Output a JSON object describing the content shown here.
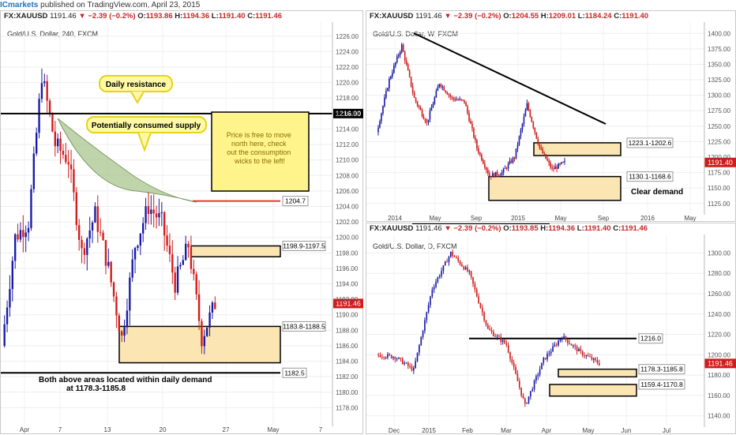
{
  "header": {
    "brand": "ICmarkets",
    "published": "published on TradingView.com, April 23, 2015"
  },
  "colors": {
    "bull": "#1a1aa6",
    "bear": "#d21b1b",
    "zone": "#fbe6b3",
    "supply": "#a9c68f",
    "note": "#fff48c",
    "resistance_line": "#e53935"
  },
  "charts": [
    {
      "id": "h4",
      "symbol": "FX:XAUUSD",
      "last": "1191.46",
      "change": "▼ −2.39 (−0.2%)",
      "ohlc": {
        "o": "1193.86",
        "h": "1194.36",
        "l": "1191.40",
        "c": "1191.46"
      },
      "subtitle": "Gold/U.S. Dollar, 240, FXCM",
      "last_label": "1191.46"
    },
    {
      "id": "w",
      "symbol": "FX:XAUUSD",
      "last": "1191.46",
      "change": "▼ −2.39 (−0.2%)",
      "ohlc": {
        "o": "1204.55",
        "h": "1209.01",
        "l": "1184.24",
        "c": "1191.40"
      },
      "subtitle": "Gold/U.S. Dollar, W, FXCM",
      "last_label": "1191.40"
    },
    {
      "id": "d",
      "symbol": "FX:XAUUSD",
      "last": "1191.46",
      "change": "▼ −2.39 (−0.2%)",
      "ohlc": {
        "o": "1193.85",
        "h": "1194.36",
        "l": "1191.40",
        "c": "1191.46"
      },
      "subtitle": "Gold/U.S. Dollar, D, FXCM",
      "last_label": "1191.46"
    }
  ],
  "chart_data": [
    {
      "type": "line",
      "title": "Gold/U.S. Dollar, 240, FXCM",
      "ylim": [
        1176,
        1227
      ],
      "y_ticks": [
        1178,
        1180,
        1182,
        1184,
        1186,
        1188,
        1190,
        1192,
        1194,
        1196,
        1198,
        1200,
        1202,
        1204,
        1206,
        1208,
        1210,
        1212,
        1214,
        1216,
        1218,
        1220,
        1222,
        1224,
        1226
      ],
      "x_ticks": [
        "Apr",
        "7",
        "13",
        "20",
        "27",
        "May",
        "7"
      ],
      "x": [
        "Apr 1",
        "Apr 2",
        "Apr 3",
        "Apr 6",
        "Apr 7",
        "Apr 8",
        "Apr 9",
        "Apr 10",
        "Apr 13",
        "Apr 14",
        "Apr 15",
        "Apr 16",
        "Apr 17",
        "Apr 20",
        "Apr 21",
        "Apr 22",
        "Apr 23"
      ],
      "series": [
        {
          "values": [
            1186,
            1200,
            1202,
            1221,
            1212,
            1210,
            1198,
            1203,
            1196,
            1187,
            1199,
            1204,
            1202,
            1194,
            1199,
            1187,
            1191.46
          ]
        }
      ],
      "levels": [
        {
          "label": "1216.00",
          "value": 1216.0
        },
        {
          "label": "1204.7",
          "value": 1204.7
        },
        {
          "label": "1182.5",
          "value": 1182.5
        }
      ],
      "zones": [
        {
          "label": "1198.9-1197.5",
          "from": 1197.5,
          "to": 1198.9
        },
        {
          "label": "1183.8-1188.5",
          "from": 1183.8,
          "to": 1188.5
        }
      ],
      "annotations": [
        "Daily resistance",
        "Potentially consumed supply",
        "Price is free to move north here, check out the consumption wicks to the left!",
        "Both above areas located within daily demand at 1178.3-1185.8"
      ]
    },
    {
      "type": "line",
      "title": "Gold/U.S. Dollar, W, FXCM",
      "ylim": [
        1112,
        1408
      ],
      "y_ticks": [
        1125,
        1150,
        1175,
        1200,
        1225,
        1250,
        1275,
        1300,
        1325,
        1350,
        1375,
        1400
      ],
      "x_ticks": [
        "2014",
        "May",
        "Sep",
        "2015",
        "May",
        "Sep",
        "2016",
        "May"
      ],
      "x": [
        "2014-01",
        "2014-02",
        "2014-03",
        "2014-04",
        "2014-05",
        "2014-06",
        "2014-07",
        "2014-08",
        "2014-09",
        "2014-10",
        "2014-11",
        "2014-12",
        "2015-01",
        "2015-02",
        "2015-03",
        "2015-04"
      ],
      "series": [
        {
          "values": [
            1240,
            1325,
            1380,
            1295,
            1255,
            1320,
            1295,
            1290,
            1215,
            1170,
            1175,
            1200,
            1285,
            1215,
            1180,
            1191.4
          ]
        }
      ],
      "levels": [
        {
          "label": "Clear demand",
          "value": 1150
        }
      ],
      "zones": [
        {
          "label": "1223.1-1202.6",
          "from": 1202.6,
          "to": 1223.1
        },
        {
          "label": "1130.1-1168.6",
          "from": 1130.1,
          "to": 1168.6
        }
      ]
    },
    {
      "type": "line",
      "title": "Gold/U.S. Dollar, D, FXCM",
      "ylim": [
        1132,
        1312
      ],
      "y_ticks": [
        1140,
        1160,
        1180,
        1200,
        1220,
        1240,
        1260,
        1280,
        1300
      ],
      "x_ticks": [
        "Dec",
        "2015",
        "Feb",
        "Mar",
        "Apr",
        "May",
        "Jun",
        "Jul"
      ],
      "x": [
        "Dec 1",
        "Dec 15",
        "Jan 1",
        "Jan 15",
        "Jan 22",
        "Feb 1",
        "Feb 15",
        "Mar 1",
        "Mar 17",
        "Apr 1",
        "Apr 6",
        "Apr 15",
        "Apr 23"
      ],
      "series": [
        {
          "values": [
            1200,
            1198,
            1185,
            1265,
            1300,
            1280,
            1225,
            1210,
            1150,
            1195,
            1218,
            1202,
            1191.46
          ]
        }
      ],
      "levels": [
        {
          "label": "1216.0",
          "value": 1216.0
        }
      ],
      "zones": [
        {
          "label": "1178.3-1185.8",
          "from": 1178.3,
          "to": 1185.8
        },
        {
          "label": "1159.4-1170.8",
          "from": 1159.4,
          "to": 1170.8
        }
      ]
    }
  ]
}
